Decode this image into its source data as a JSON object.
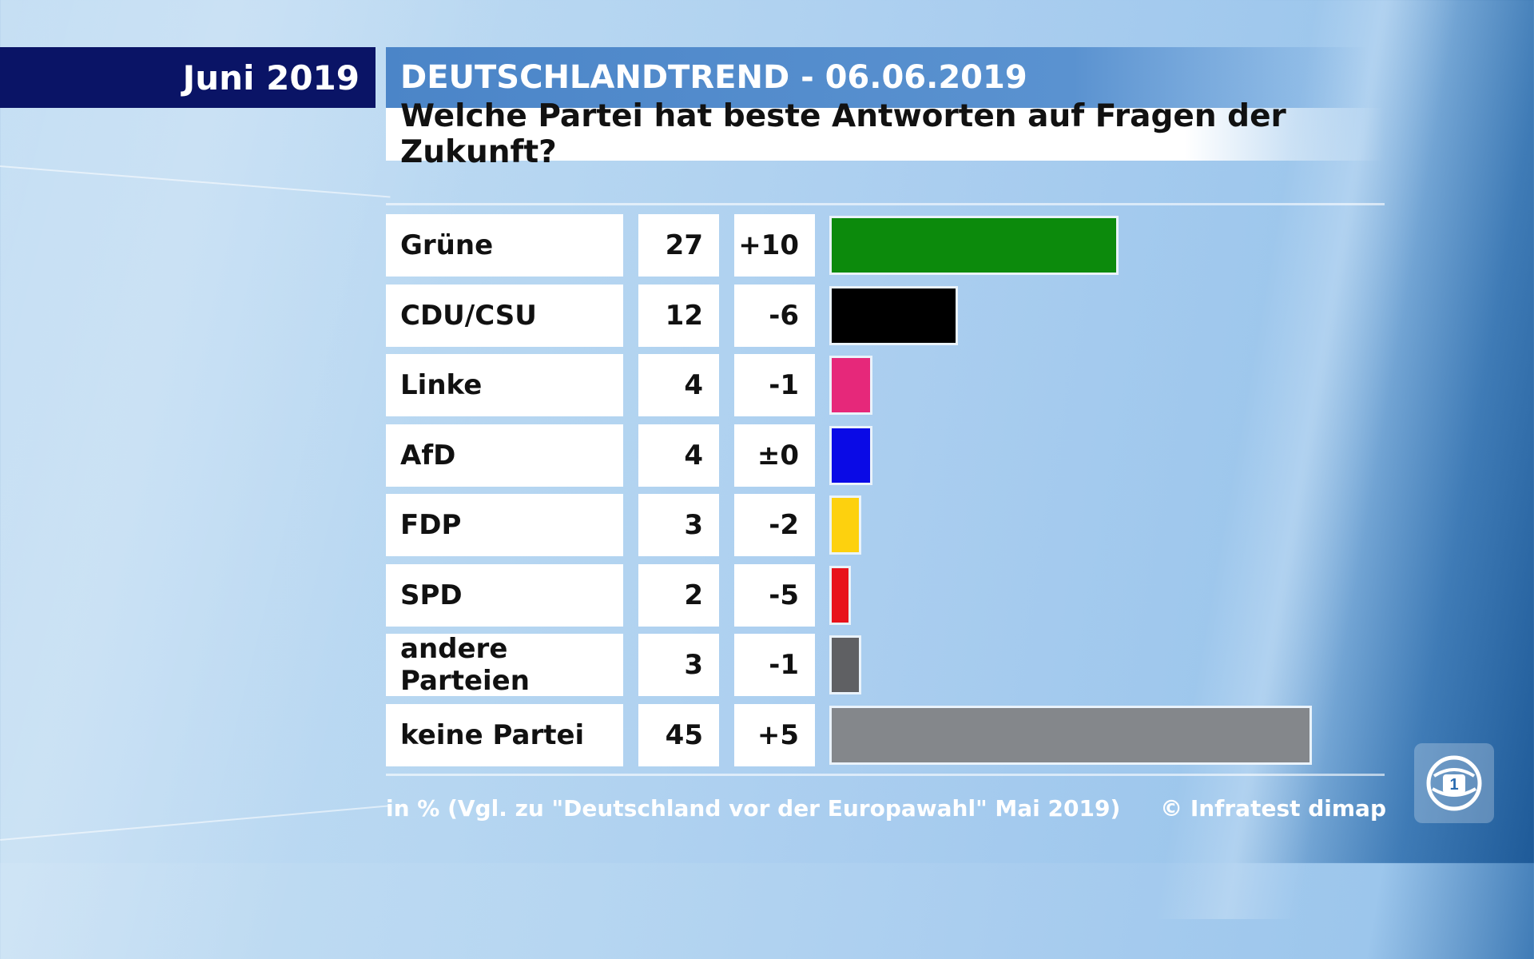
{
  "header": {
    "date_label": "Juni 2019",
    "title": "DEUTSCHLANDTREND - 06.06.2019",
    "question": "Welche Partei hat beste Antworten auf Fragen der Zukunft?"
  },
  "chart_data": {
    "type": "bar",
    "orientation": "horizontal",
    "title": "Welche Partei hat beste Antworten auf Fragen der Zukunft?",
    "unit": "%",
    "xlim": [
      0,
      50
    ],
    "categories": [
      "Grüne",
      "CDU/CSU",
      "Linke",
      "AfD",
      "FDP",
      "SPD",
      "andere Parteien",
      "keine Partei"
    ],
    "values": [
      27,
      12,
      4,
      4,
      3,
      2,
      3,
      45
    ],
    "changes": [
      "+10",
      "-6",
      "-1",
      "±0",
      "-2",
      "-5",
      "-1",
      "+5"
    ],
    "colors": [
      "#0c8a0c",
      "#000000",
      "#e6287a",
      "#0a0ae6",
      "#fdd10e",
      "#e8121b",
      "#5f6063",
      "#84878b"
    ]
  },
  "footer": {
    "note": "in % (Vgl. zu \"Deutschland vor der Europawahl\" Mai 2019)",
    "copyright": "© Infratest dimap"
  },
  "logo": {
    "icon": "ard-logo-icon"
  }
}
